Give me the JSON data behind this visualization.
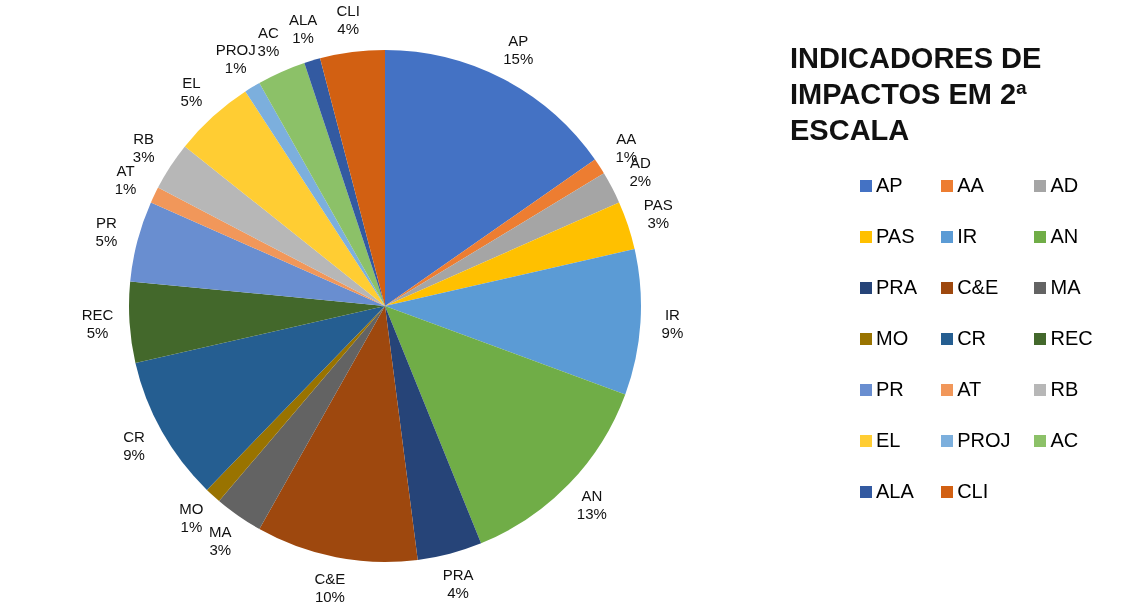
{
  "chart_data": {
    "type": "pie",
    "title": "INDICADORES DE IMPACTOS EM 2ª ESCALA",
    "categories": [
      "AP",
      "AA",
      "AD",
      "PAS",
      "IR",
      "AN",
      "PRA",
      "C&E",
      "MA",
      "MO",
      "CR",
      "REC",
      "PR",
      "AT",
      "RB",
      "EL",
      "PROJ",
      "AC",
      "ALA",
      "CLI"
    ],
    "values": [
      15,
      1,
      2,
      3,
      9,
      13,
      4,
      10,
      3,
      1,
      9,
      5,
      5,
      1,
      3,
      5,
      1,
      3,
      1,
      4
    ],
    "colors": [
      "#4472c4",
      "#ed7d31",
      "#a5a5a5",
      "#ffc000",
      "#5b9bd5",
      "#70ad47",
      "#264478",
      "#9e480e",
      "#636363",
      "#997300",
      "#255e91",
      "#43682b",
      "#698ed0",
      "#f1975a",
      "#b7b7b7",
      "#ffcd33",
      "#7cafdd",
      "#8cc168",
      "#335aa1",
      "#d26012"
    ],
    "value_labels": [
      "15%",
      "1%",
      "2%",
      "3%",
      "9%",
      "13%",
      "4%",
      "10%",
      "3%",
      "1%",
      "9%",
      "5%",
      "5%",
      "1%",
      "3%",
      "5%",
      "1%",
      "3%",
      "1%",
      "4%"
    ],
    "legend": "right"
  }
}
